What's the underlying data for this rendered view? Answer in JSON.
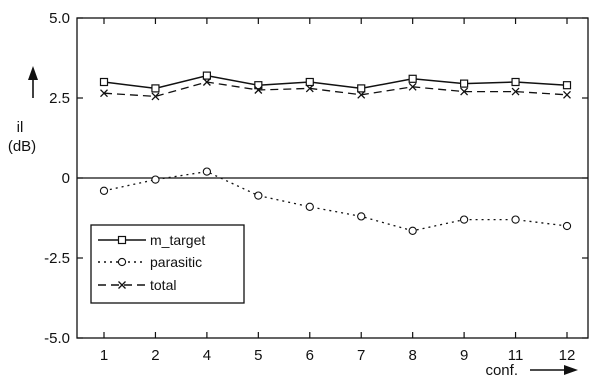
{
  "chart_data": {
    "type": "line",
    "title": "",
    "xlabel": "conf.",
    "ylabel": "il (dB)",
    "ylabel_lines": [
      "il",
      "(dB)"
    ],
    "categories": [
      "1",
      "2",
      "4",
      "5",
      "6",
      "7",
      "8",
      "9",
      "11",
      "12"
    ],
    "ylim": [
      -5.0,
      5.0
    ],
    "yticks": [
      -5.0,
      -2.5,
      0,
      2.5,
      5.0
    ],
    "ytick_labels": [
      "-5.0",
      "-2.5",
      "0",
      "2.5",
      "5.0"
    ],
    "zero_line": true,
    "grid": false,
    "legend_position": "bottom-left",
    "series": [
      {
        "name": "m_target",
        "marker": "square",
        "line": "solid",
        "values": [
          3.0,
          2.8,
          3.2,
          2.9,
          3.0,
          2.8,
          3.1,
          2.95,
          3.0,
          2.9
        ]
      },
      {
        "name": "parasitic",
        "marker": "circle",
        "line": "dotted",
        "values": [
          -0.4,
          -0.05,
          0.2,
          -0.55,
          -0.9,
          -1.2,
          -1.65,
          -1.3,
          -1.3,
          -1.5
        ]
      },
      {
        "name": "total",
        "marker": "x",
        "line": "dashed",
        "values": [
          2.65,
          2.55,
          3.0,
          2.75,
          2.8,
          2.6,
          2.85,
          2.7,
          2.7,
          2.6
        ]
      }
    ]
  }
}
